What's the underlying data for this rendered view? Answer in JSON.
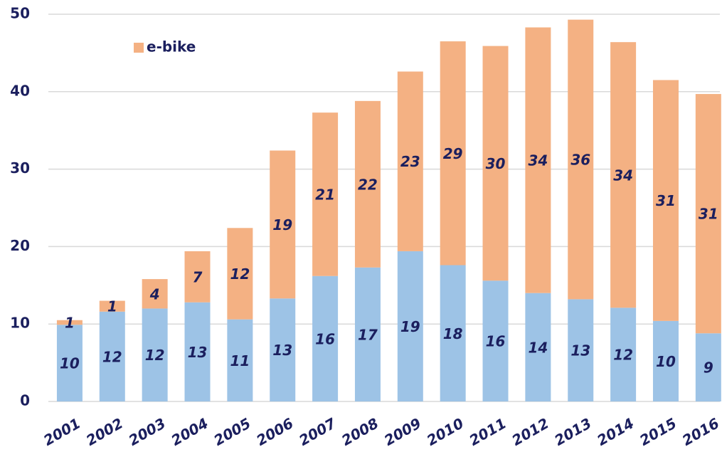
{
  "chart_data": {
    "type": "stacked_bar",
    "categories": [
      "2001",
      "2002",
      "2003",
      "2004",
      "2005",
      "2006",
      "2007",
      "2008",
      "2009",
      "2010",
      "2011",
      "2012",
      "2013",
      "2014",
      "2015",
      "2016"
    ],
    "series": [
      {
        "color": "#9dc3e6",
        "values": [
          9.9,
          11.6,
          12.0,
          12.8,
          10.6,
          13.3,
          16.2,
          17.3,
          19.4,
          17.6,
          15.6,
          14.0,
          13.2,
          12.1,
          10.4,
          8.8
        ],
        "value_labels": [
          "10",
          "12",
          "12",
          "13",
          "11",
          "13",
          "16",
          "17",
          "19",
          "18",
          "16",
          "14",
          "13",
          "12",
          "10",
          "9"
        ]
      },
      {
        "name": "e-bike",
        "color": "#f4b183",
        "values": [
          0.6,
          1.4,
          3.8,
          6.6,
          11.8,
          19.1,
          21.1,
          21.5,
          23.2,
          28.9,
          30.3,
          34.3,
          36.1,
          34.3,
          31.1,
          30.9
        ],
        "value_labels": [
          "1",
          "1",
          "4",
          "7",
          "12",
          "19",
          "21",
          "22",
          "23",
          "29",
          "30",
          "34",
          "36",
          "34",
          "31",
          "31"
        ]
      }
    ],
    "ylim": [
      0,
      50
    ],
    "yticks": [
      0,
      10,
      20,
      30,
      40,
      50
    ],
    "grid": true,
    "legend": "top-left"
  }
}
